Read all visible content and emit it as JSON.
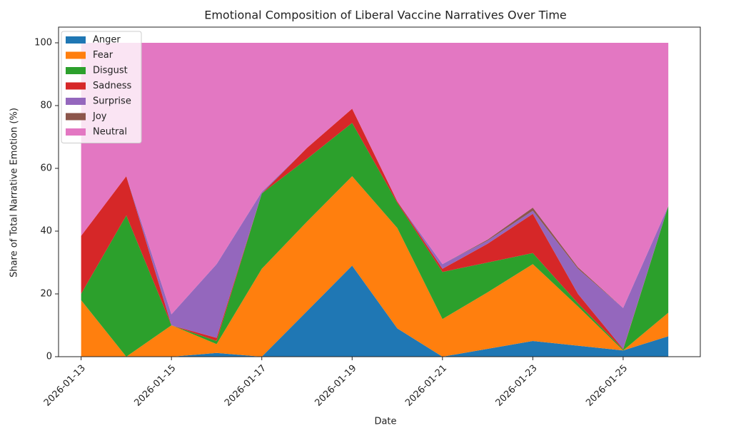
{
  "chart_data": {
    "type": "stacked_area",
    "title": "Emotional Composition of Liberal Vaccine Narratives Over Time",
    "x_label": "Date",
    "y_label": "Share of Total Narrative Emotion (%)",
    "x": [
      "2026-01-13",
      "2026-01-14",
      "2026-01-15",
      "2026-01-16",
      "2026-01-17",
      "2026-01-18",
      "2026-01-19",
      "2026-01-20",
      "2026-01-21",
      "2026-01-22",
      "2026-01-23",
      "2026-01-24",
      "2026-01-25",
      "2026-01-26"
    ],
    "xlim": [
      "2026-01-12T12:00",
      "2026-01-26T17:00"
    ],
    "xticks": [
      "2026-01-13",
      "2026-01-15",
      "2026-01-17",
      "2026-01-19",
      "2026-01-21",
      "2026-01-23",
      "2026-01-25"
    ],
    "ylim": [
      0,
      105
    ],
    "yticks": [
      0,
      20,
      40,
      60,
      80,
      100
    ],
    "legend": "upper left",
    "series": [
      {
        "name": "Anger",
        "color": "#1f77b4",
        "values": [
          0,
          0,
          0,
          1.2,
          0,
          14.5,
          29,
          9,
          0,
          2.5,
          5,
          3.5,
          2,
          6.5
        ]
      },
      {
        "name": "Fear",
        "color": "#ff7f0e",
        "values": [
          18,
          0,
          10,
          2.8,
          28,
          28.5,
          28.5,
          32,
          12,
          18,
          24.5,
          12.5,
          0,
          7.5
        ]
      },
      {
        "name": "Disgust",
        "color": "#2ca02c",
        "values": [
          2,
          45,
          0,
          1,
          24,
          20,
          17,
          8,
          15,
          9.5,
          3.5,
          1,
          0.3,
          34
        ]
      },
      {
        "name": "Sadness",
        "color": "#d62728",
        "values": [
          18.5,
          12.5,
          0,
          1,
          0,
          3.5,
          4.5,
          0.5,
          1,
          6,
          12.5,
          3,
          0.2,
          0
        ]
      },
      {
        "name": "Surprise",
        "color": "#9467bd",
        "values": [
          0,
          0,
          3.5,
          23.5,
          0.5,
          0,
          0,
          0,
          1.5,
          1,
          1,
          8,
          13,
          0
        ]
      },
      {
        "name": "Joy",
        "color": "#8c564b",
        "values": [
          0,
          0,
          0,
          0,
          0,
          0,
          0,
          0,
          0,
          0.3,
          1,
          0.5,
          0,
          0
        ]
      },
      {
        "name": "Neutral",
        "color": "#e377c2",
        "values": [
          61.5,
          42.5,
          86.5,
          70.5,
          47.5,
          33.5,
          21,
          50.5,
          70.5,
          62.7,
          52.5,
          71.5,
          84.5,
          52
        ]
      }
    ]
  }
}
